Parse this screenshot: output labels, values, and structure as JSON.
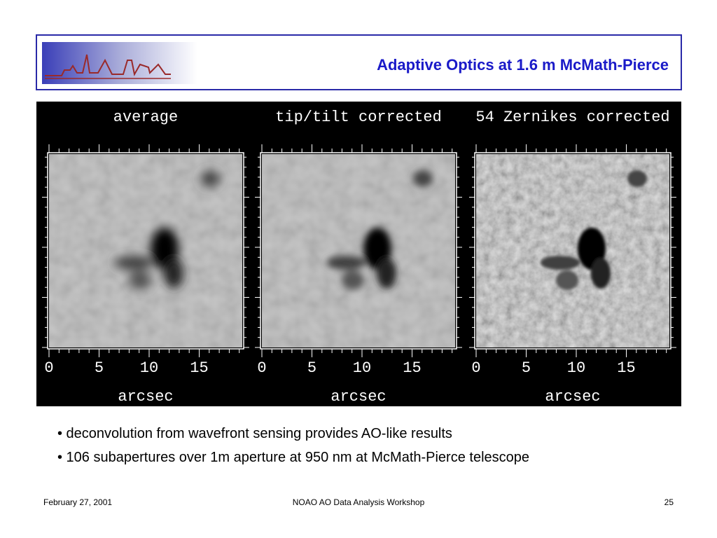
{
  "header": {
    "title": "Adaptive Optics at 1.6 m McMath-Pierce"
  },
  "figure": {
    "panels": [
      {
        "title": "average",
        "ticks": [
          "0",
          "5",
          "10",
          "15"
        ],
        "xlabel": "arcsec"
      },
      {
        "title": "tip/tilt corrected",
        "ticks": [
          "0",
          "5",
          "10",
          "15"
        ],
        "xlabel": "arcsec"
      },
      {
        "title": "54 Zernikes corrected",
        "ticks": [
          "0",
          "5",
          "10",
          "15"
        ],
        "xlabel": "arcsec"
      }
    ]
  },
  "bullets": [
    "• deconvolution from wavefront sensing provides AO-like results",
    "• 106 subapertures over 1m aperture at 950 nm at McMath-Pierce telescope"
  ],
  "footer": {
    "date": "February 27, 2001",
    "event": "NOAO AO Data Analysis Workshop",
    "page": "25"
  }
}
